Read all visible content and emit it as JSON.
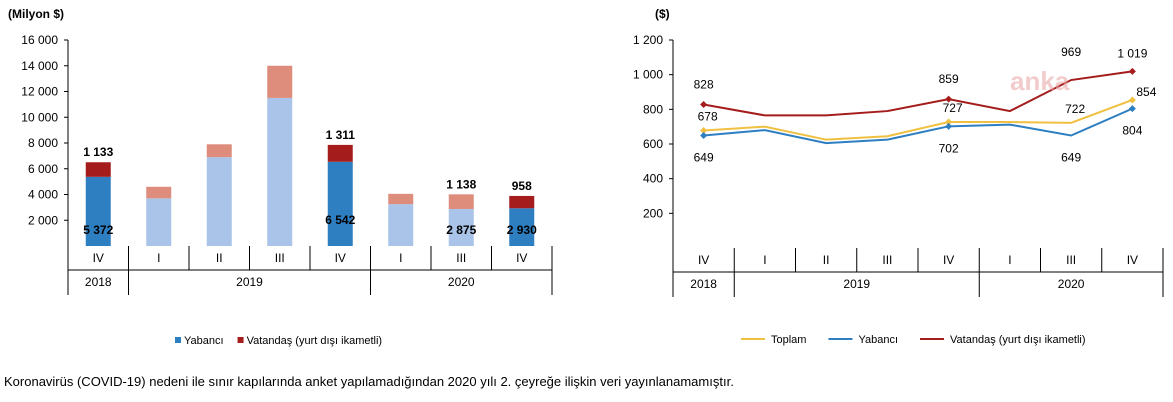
{
  "footnote": "Koronavirüs (COVID-19) nedeni ile sınır kapılarında anket yapılamadığından 2020 yılı 2. çeyreğe ilişkin veri yayınlanamamıştır.",
  "watermark": "anka",
  "chart_data": [
    {
      "type": "bar",
      "stacked": true,
      "ylabel": "(Milyon $)",
      "ylim": [
        0,
        16000
      ],
      "yticks": [
        "2 000",
        "4 000",
        "6 000",
        "8 000",
        "10 000",
        "12 000",
        "14 000",
        "16 000"
      ],
      "categories": [
        "IV",
        "I",
        "II",
        "III",
        "IV",
        "I",
        "III",
        "IV"
      ],
      "years": [
        {
          "label": "2018",
          "span": 1
        },
        {
          "label": "2019",
          "span": 4
        },
        {
          "label": "2020",
          "span": 3
        }
      ],
      "highlighted": [
        true,
        false,
        false,
        false,
        true,
        false,
        false,
        true
      ],
      "series": [
        {
          "name": "Yabancı",
          "values": [
            5372,
            3700,
            6900,
            11500,
            6542,
            3250,
            2875,
            2930
          ],
          "labels": [
            "5 372",
            "",
            "",
            "",
            "6 542",
            "",
            "2 875",
            "2 930"
          ],
          "color": "#2e7fc1",
          "faded_color": "#a9c4e8"
        },
        {
          "name": "Vatandaş (yurt dışı ikametli)",
          "values": [
            1133,
            900,
            1000,
            2500,
            1311,
            800,
            1138,
            958
          ],
          "labels": [
            "1 133",
            "",
            "",
            "",
            "1 311",
            "",
            "1 138",
            "958"
          ],
          "color": "#a51c1c",
          "faded_color": "#de8d7d"
        }
      ],
      "legend_position": "bottom"
    },
    {
      "type": "line",
      "ylabel": "($)",
      "ylim": [
        0,
        1200
      ],
      "yticks": [
        "200",
        "400",
        "600",
        "800",
        "1 000",
        "1 200"
      ],
      "categories": [
        "IV",
        "I",
        "II",
        "III",
        "IV",
        "I",
        "III",
        "IV"
      ],
      "years": [
        {
          "label": "2018",
          "span": 1
        },
        {
          "label": "2019",
          "span": 4
        },
        {
          "label": "2020",
          "span": 3
        }
      ],
      "markers": [
        true,
        false,
        false,
        false,
        true,
        false,
        false,
        true
      ],
      "series": [
        {
          "name": "Toplam",
          "color": "#f0c040",
          "values": [
            678,
            700,
            625,
            645,
            727,
            727,
            722,
            854
          ],
          "labels": [
            "678",
            "",
            "",
            "",
            "727",
            "",
            "722",
            "854"
          ]
        },
        {
          "name": "Yabancı",
          "color": "#2e7fc1",
          "values": [
            649,
            680,
            605,
            625,
            702,
            712,
            649,
            804
          ],
          "labels": [
            "649",
            "",
            "",
            "",
            "702",
            "",
            "649",
            "804"
          ]
        },
        {
          "name": "Vatandaş (yurt dışı ikametli)",
          "color": "#a51c1c",
          "values": [
            828,
            765,
            765,
            790,
            859,
            790,
            969,
            1019
          ],
          "labels": [
            "828",
            "",
            "",
            "",
            "859",
            "",
            "969",
            "1 019"
          ]
        }
      ],
      "legend_position": "bottom"
    }
  ]
}
